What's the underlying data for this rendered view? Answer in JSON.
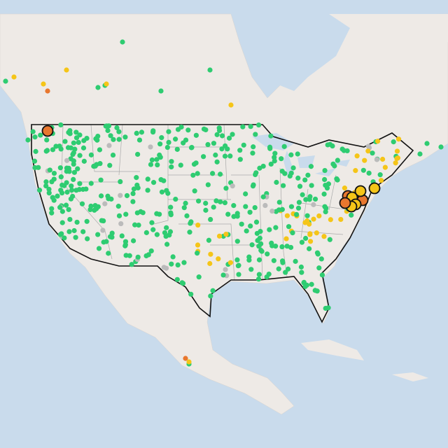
{
  "map": {
    "colors": [
      "#2ecc71",
      "#f5c518",
      "#e8772e",
      "#bbbbbb"
    ]
  }
}
